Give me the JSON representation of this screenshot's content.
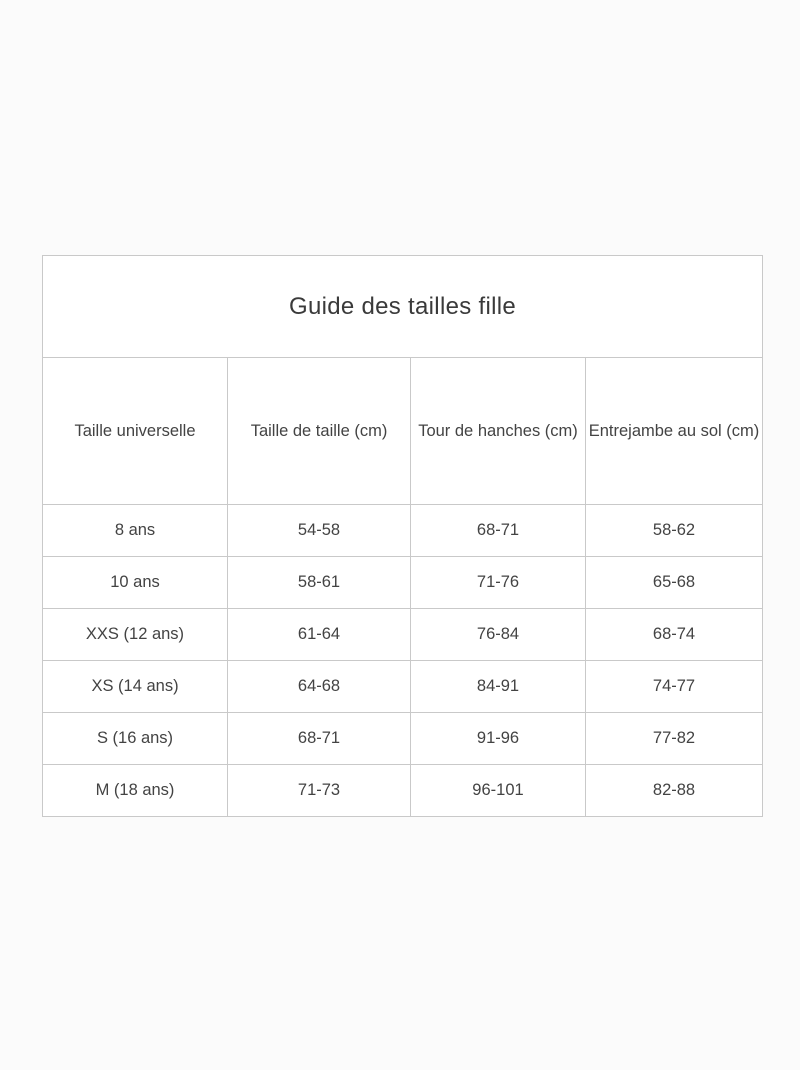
{
  "page": {
    "background_color": "#fbfbfb"
  },
  "size_guide": {
    "title": "Guide des tailles fille",
    "border_color": "#c9c9c9",
    "text_color": "#3e3e3e",
    "headers": [
      "Taille universelle",
      "Taille de taille (cm)",
      "Tour de hanches (cm)",
      "Entrejambe au sol (cm)"
    ],
    "rows": [
      [
        "8 ans",
        "54-58",
        "68-71",
        "58-62"
      ],
      [
        "10 ans",
        "58-61",
        "71-76",
        "65-68"
      ],
      [
        "XXS (12 ans)",
        "61-64",
        "76-84",
        "68-74"
      ],
      [
        "XS (14 ans)",
        "64-68",
        "84-91",
        "74-77"
      ],
      [
        "S (16 ans)",
        "68-71",
        "91-96",
        "77-82"
      ],
      [
        "M (18 ans)",
        "71-73",
        "96-101",
        "82-88"
      ]
    ]
  }
}
